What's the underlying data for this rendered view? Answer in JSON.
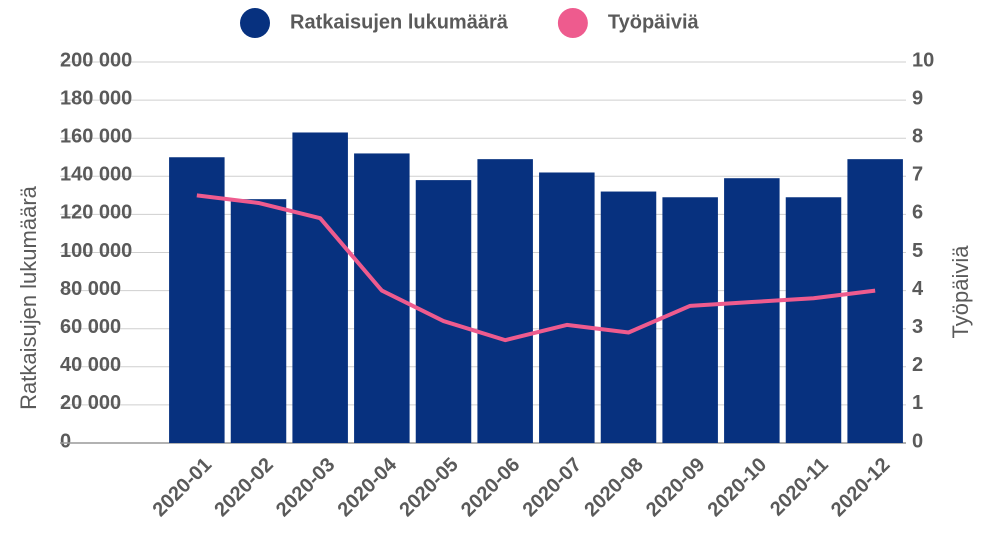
{
  "chart_data": {
    "type": "bar-line",
    "categories": [
      "2020-01",
      "2020-02",
      "2020-03",
      "2020-04",
      "2020-05",
      "2020-06",
      "2020-07",
      "2020-08",
      "2020-09",
      "2020-10",
      "2020-11",
      "2020-12"
    ],
    "series": [
      {
        "name": "Ratkaisujen lukumäärä",
        "color": "#07317f",
        "type": "bar",
        "values": [
          150000,
          128000,
          163000,
          152000,
          138000,
          149000,
          142000,
          132000,
          129000,
          139000,
          129000,
          149000
        ]
      },
      {
        "name": "Työpäiviä",
        "color": "#ee5b8e",
        "type": "line",
        "axis": "y2",
        "values": [
          6.5,
          6.3,
          5.9,
          4.0,
          3.2,
          2.7,
          3.1,
          2.9,
          3.6,
          3.7,
          3.8,
          4.0
        ]
      }
    ],
    "ylabel": "Ratkaisujen lukumäärä",
    "y2label": "Työpäiviä",
    "ylim": [
      0,
      200000
    ],
    "yticks": [
      {
        "value": 0,
        "label": "0"
      },
      {
        "value": 20000,
        "label": "20 000"
      },
      {
        "value": 40000,
        "label": "40 000"
      },
      {
        "value": 60000,
        "label": "60 000"
      },
      {
        "value": 80000,
        "label": "80 000"
      },
      {
        "value": 100000,
        "label": "100 000"
      },
      {
        "value": 120000,
        "label": "120 000"
      },
      {
        "value": 140000,
        "label": "140 000"
      },
      {
        "value": 160000,
        "label": "160 000"
      },
      {
        "value": 180000,
        "label": "180 000"
      },
      {
        "value": 200000,
        "label": "200 000"
      }
    ],
    "y2lim": [
      0,
      10
    ],
    "y2ticks": [
      0,
      1,
      2,
      3,
      4,
      5,
      6,
      7,
      8,
      9,
      10
    ],
    "grid": true,
    "legend": "top"
  }
}
